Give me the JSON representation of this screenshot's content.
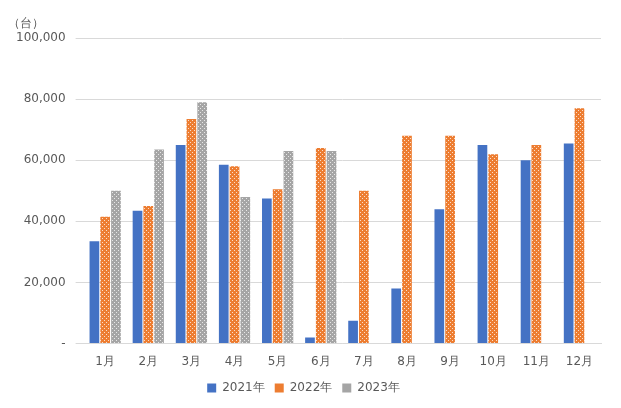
{
  "chart_data": {
    "type": "bar",
    "ylabel": "（台）",
    "categories": [
      "1月",
      "2月",
      "3月",
      "4月",
      "5月",
      "6月",
      "7月",
      "8月",
      "9月",
      "10月",
      "11月",
      "12月"
    ],
    "series": [
      {
        "name": "2021年",
        "color": "#4472c4",
        "values": [
          33500,
          43500,
          65000,
          58500,
          47500,
          2000,
          7500,
          18000,
          44000,
          65000,
          60000,
          65500
        ]
      },
      {
        "name": "2022年",
        "color": "#ed7d31",
        "values": [
          41500,
          45000,
          73500,
          58000,
          50500,
          64000,
          50000,
          68000,
          68000,
          62000,
          65000,
          77000
        ]
      },
      {
        "name": "2023年",
        "color": "#a5a5a5",
        "values": [
          50000,
          63500,
          79000,
          48000,
          63000,
          63000,
          null,
          null,
          null,
          null,
          null,
          null
        ]
      }
    ],
    "ylim": [
      0,
      100000
    ],
    "yticks": [
      {
        "value": 0,
        "label": "-"
      },
      {
        "value": 20000,
        "label": "20,000"
      },
      {
        "value": 40000,
        "label": "40,000"
      },
      {
        "value": 60000,
        "label": "60,000"
      },
      {
        "value": 80000,
        "label": "80,000"
      },
      {
        "value": 100000,
        "label": "100,000"
      }
    ],
    "grid": true,
    "legend": "bottom"
  }
}
